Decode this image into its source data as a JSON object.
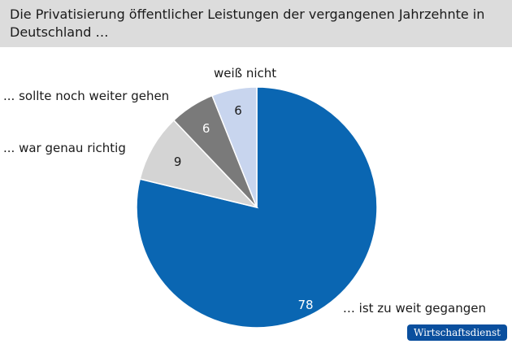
{
  "title": "Die Privatisierung öffentlicher Leistungen der vergangenen Jahrzehnte in Deutschland …",
  "brand": "Wirtschaftsdienst",
  "chart_data": {
    "type": "pie",
    "title": "Die Privatisierung öffentlicher Leistungen der vergangenen Jahrzehnte in Deutschland …",
    "categories": [
      "… ist zu weit gegangen",
      "... war genau richtig",
      "... sollte noch weiter gehen",
      "weiß nicht"
    ],
    "values": [
      78,
      9,
      6,
      6
    ],
    "value_labels": [
      "78",
      "9",
      "6",
      "6"
    ],
    "colors": [
      "#0a66b2",
      "#d4d4d4",
      "#7a7a7a",
      "#c8d5ee"
    ],
    "label_colors": [
      "#ffffff",
      "#1a1a1a",
      "#ffffff",
      "#1a1a1a"
    ],
    "direction": "clockwise from top"
  }
}
